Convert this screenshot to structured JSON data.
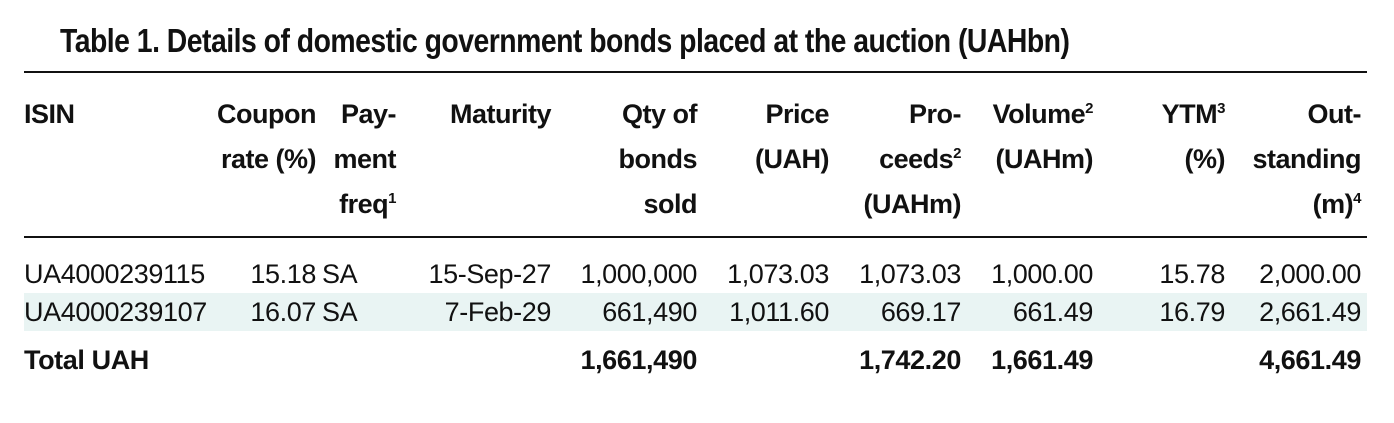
{
  "title": "Table 1. Details of domestic government bonds placed at the auction (UAHbn)",
  "columns": [
    {
      "lines": [
        "ISIN"
      ],
      "sup": ""
    },
    {
      "lines": [
        "Coupon",
        "rate (%)"
      ],
      "sup": ""
    },
    {
      "lines": [
        "Pay-",
        "ment",
        "freq"
      ],
      "sup": "1"
    },
    {
      "lines": [
        "Maturity"
      ],
      "sup": ""
    },
    {
      "lines": [
        "Qty of",
        "bonds",
        "sold"
      ],
      "sup": ""
    },
    {
      "lines": [
        "Price",
        "(UAH)"
      ],
      "sup": ""
    },
    {
      "lines": [
        "Pro-",
        "ceeds",
        "(UAHm)"
      ],
      "sup": "2"
    },
    {
      "lines": [
        "Volume",
        "(UAHm)"
      ],
      "sup": "2"
    },
    {
      "lines": [
        "YTM",
        "(%)"
      ],
      "sup": "3"
    },
    {
      "lines": [
        "Out-",
        "standing",
        "(m)"
      ],
      "sup": "4"
    }
  ],
  "rows": [
    {
      "isin": "UA4000239115",
      "coupon": "15.18",
      "freq": "SA",
      "maturity": "15-Sep-27",
      "qty": "1,000,000",
      "price": "1,073.03",
      "proceeds": "1,073.03",
      "volume": "1,000.00",
      "ytm": "15.78",
      "outstanding": "2,000.00"
    },
    {
      "isin": "UA4000239107",
      "coupon": "16.07",
      "freq": "SA",
      "maturity": "7-Feb-29",
      "qty": "661,490",
      "price": "1,011.60",
      "proceeds": "669.17",
      "volume": "661.49",
      "ytm": "16.79",
      "outstanding": "2,661.49"
    }
  ],
  "total": {
    "label": "Total UAH",
    "qty": "1,661,490",
    "proceeds": "1,742.20",
    "volume": "1,661.49",
    "outstanding": "4,661.49"
  },
  "colors": {
    "row_shade": "#e9f4f3",
    "text": "#111111",
    "rule": "#111111"
  }
}
